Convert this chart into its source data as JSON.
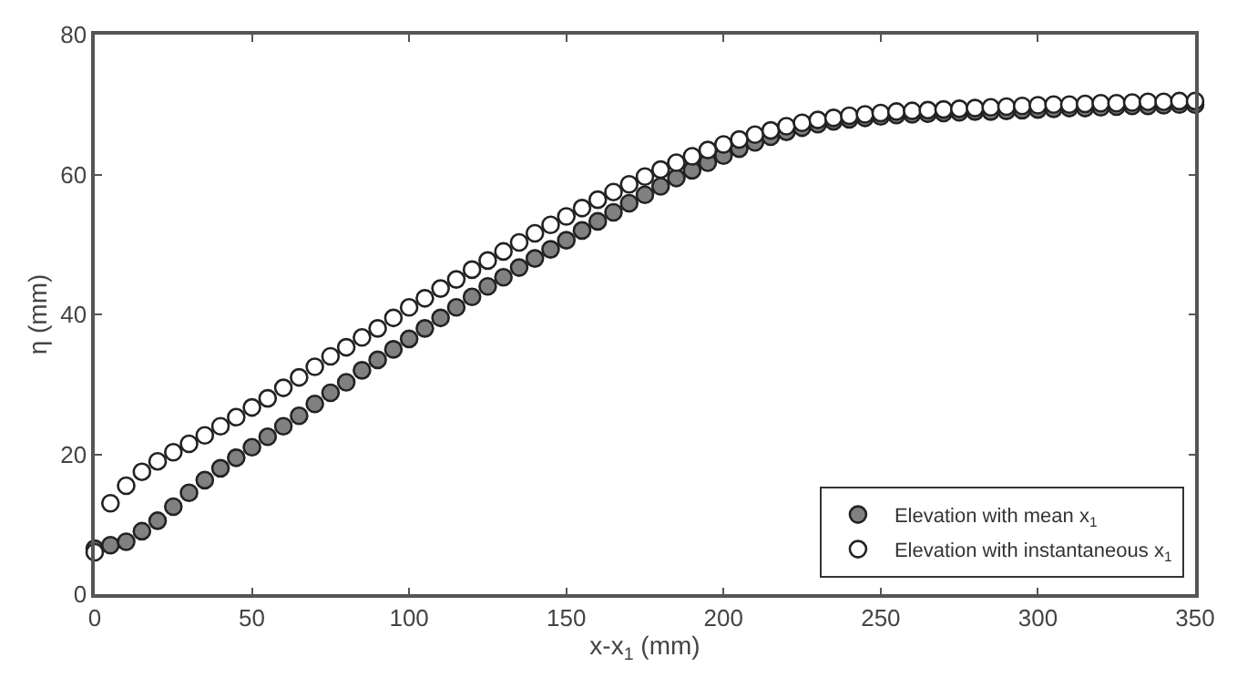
{
  "chart_data": {
    "type": "scatter",
    "xlabel": "x-x$_{1}$ (mm)",
    "ylabel": "η (mm)",
    "x": [
      0,
      5,
      10,
      15,
      20,
      25,
      30,
      35,
      40,
      45,
      50,
      55,
      60,
      65,
      70,
      75,
      80,
      85,
      90,
      95,
      100,
      105,
      110,
      115,
      120,
      125,
      130,
      135,
      140,
      145,
      150,
      155,
      160,
      165,
      170,
      175,
      180,
      185,
      190,
      195,
      200,
      205,
      210,
      215,
      220,
      225,
      230,
      235,
      240,
      245,
      250,
      255,
      260,
      265,
      270,
      275,
      280,
      285,
      290,
      295,
      300,
      305,
      310,
      315,
      320,
      325,
      330,
      335,
      340,
      345,
      350
    ],
    "series": [
      {
        "name": "Elevation with mean x$_{1}$",
        "color": "#808080",
        "values": [
          6.5,
          7,
          7.5,
          9,
          10.5,
          12.5,
          14.5,
          16.3,
          18,
          19.5,
          21,
          22.5,
          24,
          25.5,
          27.2,
          28.8,
          30.3,
          32,
          33.5,
          35,
          36.5,
          38,
          39.5,
          41,
          42.5,
          44,
          45.3,
          46.7,
          48,
          49.3,
          50.6,
          52,
          53.3,
          54.6,
          55.9,
          57.1,
          58.3,
          59.5,
          60.6,
          61.7,
          62.7,
          63.7,
          64.6,
          65.4,
          66.1,
          66.7,
          67.2,
          67.6,
          67.9,
          68.1,
          68.3,
          68.5,
          68.6,
          68.7,
          68.8,
          68.9,
          69,
          69,
          69.1,
          69.2,
          69.3,
          69.4,
          69.5,
          69.5,
          69.6,
          69.7,
          69.8,
          69.8,
          69.9,
          70,
          70
        ]
      },
      {
        "name": "Elevation with instantaneous x$_{1}$",
        "color": "#ffffff",
        "values": [
          6,
          13,
          15.5,
          17.5,
          19,
          20.3,
          21.5,
          22.7,
          24,
          25.3,
          26.7,
          28,
          29.5,
          31,
          32.5,
          34,
          35.3,
          36.7,
          38,
          39.5,
          41,
          42.3,
          43.7,
          45,
          46.4,
          47.7,
          49,
          50.3,
          51.6,
          52.8,
          54,
          55.2,
          56.4,
          57.5,
          58.6,
          59.7,
          60.7,
          61.7,
          62.6,
          63.5,
          64.3,
          65,
          65.7,
          66.3,
          66.9,
          67.4,
          67.8,
          68.1,
          68.4,
          68.6,
          68.8,
          69,
          69.1,
          69.2,
          69.3,
          69.4,
          69.5,
          69.6,
          69.7,
          69.8,
          69.9,
          70,
          70,
          70.1,
          70.2,
          70.2,
          70.3,
          70.4,
          70.4,
          70.5,
          70.5
        ]
      }
    ],
    "xlim": [
      0,
      350
    ],
    "xticks": [
      0,
      50,
      100,
      150,
      200,
      250,
      300,
      350
    ],
    "ylim": [
      0,
      80
    ],
    "yticks": [
      0,
      20,
      40,
      60,
      80
    ],
    "grid": false,
    "legend": "bottom right",
    "marker": "circle"
  }
}
